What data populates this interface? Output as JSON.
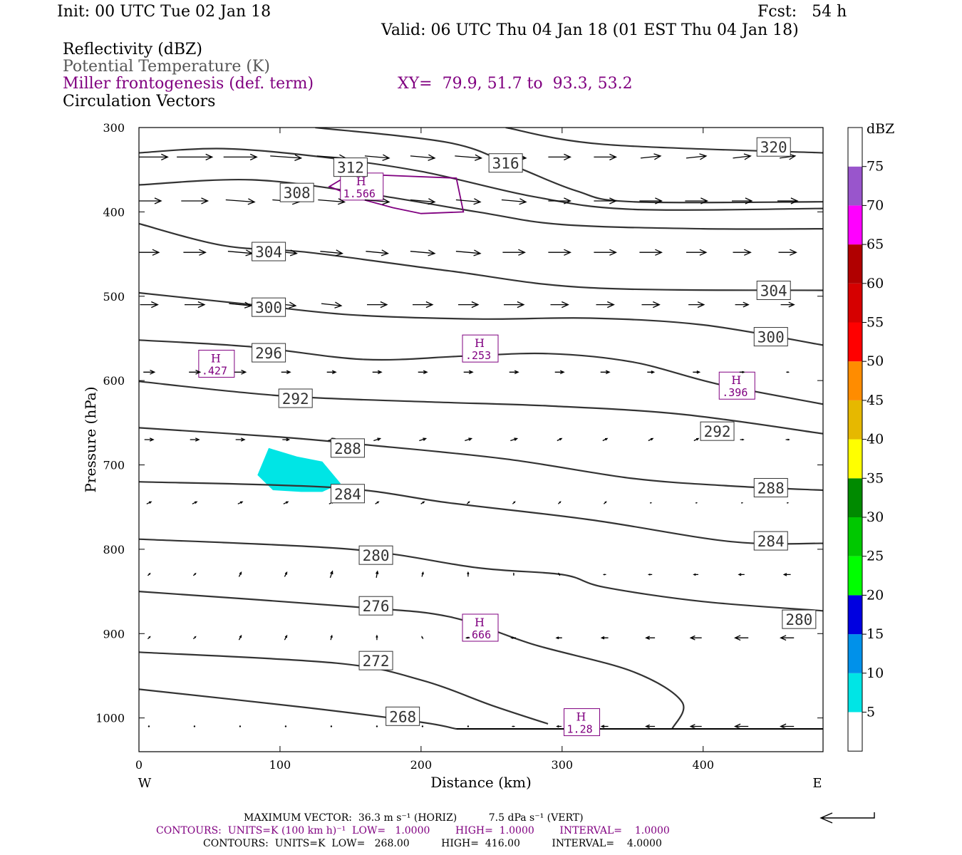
{
  "header": {
    "init": "Init: 00 UTC Tue 02 Jan 18",
    "fcst": "Fcst:   54 h",
    "valid": "Valid: 06 UTC Thu 04 Jan 18 (01 EST Thu 04 Jan 18)",
    "fields": [
      "Reflectivity (dBZ)",
      "Potential Temperature (K)",
      "Miller frontogenesis (def. term)",
      "Circulation Vectors"
    ],
    "xy": "XY=  79.9, 51.7 to  93.3, 53.2"
  },
  "colors": {
    "theta": "#333333",
    "fronto": "#800080",
    "vector": "#000000"
  },
  "chart_data": {
    "type": "cross-section",
    "xlabel": "Distance (km)",
    "ylabel": "Pressure (hPa)",
    "xlim": [
      0,
      485
    ],
    "ylim": [
      1040,
      300
    ],
    "x_ticks": [
      0,
      100,
      200,
      300,
      400
    ],
    "y_ticks": [
      300,
      400,
      500,
      600,
      700,
      800,
      900,
      1000
    ],
    "x_end_labels": [
      "W",
      "E"
    ],
    "theta_contours": [
      {
        "value": 320,
        "points": [
          [
            260,
            300
          ],
          [
            330,
            320
          ],
          [
            485,
            330
          ]
        ],
        "labels": [
          [
            450,
            323
          ]
        ]
      },
      {
        "value": 316,
        "points": [
          [
            125,
            300
          ],
          [
            220,
            318
          ],
          [
            265,
            345
          ],
          [
            310,
            375
          ],
          [
            350,
            388
          ],
          [
            485,
            388
          ]
        ],
        "labels": [
          [
            260,
            342
          ]
        ]
      },
      {
        "value": 312,
        "points": [
          [
            0,
            330
          ],
          [
            60,
            325
          ],
          [
            130,
            335
          ],
          [
            200,
            352
          ],
          [
            280,
            382
          ],
          [
            350,
            397
          ],
          [
            485,
            396
          ]
        ],
        "labels": [
          [
            150,
            347
          ]
        ]
      },
      {
        "value": 308,
        "points": [
          [
            0,
            368
          ],
          [
            80,
            362
          ],
          [
            160,
            378
          ],
          [
            240,
            400
          ],
          [
            300,
            415
          ],
          [
            400,
            420
          ],
          [
            485,
            420
          ]
        ],
        "labels": [
          [
            112,
            377
          ]
        ]
      },
      {
        "value": 304,
        "points": [
          [
            0,
            414
          ],
          [
            60,
            440
          ],
          [
            120,
            448
          ],
          [
            220,
            470
          ],
          [
            320,
            490
          ],
          [
            485,
            493
          ]
        ],
        "labels": [
          [
            92,
            447
          ]
        ],
        "labels2": [
          [
            450,
            493
          ]
        ]
      },
      {
        "value": 300,
        "points": [
          [
            0,
            496
          ],
          [
            80,
            510
          ],
          [
            150,
            522
          ],
          [
            240,
            527
          ],
          [
            320,
            526
          ],
          [
            400,
            534
          ],
          [
            485,
            558
          ]
        ],
        "labels": [
          [
            92,
            513
          ]
        ],
        "labels2": [
          [
            448,
            548
          ]
        ]
      },
      {
        "value": 296,
        "points": [
          [
            0,
            552
          ],
          [
            80,
            560
          ],
          [
            160,
            575
          ],
          [
            230,
            571
          ],
          [
            290,
            568
          ],
          [
            350,
            578
          ],
          [
            410,
            604
          ],
          [
            485,
            628
          ]
        ],
        "labels": [
          [
            92,
            567
          ]
        ]
      },
      {
        "value": 292,
        "points": [
          [
            0,
            601
          ],
          [
            100,
            618
          ],
          [
            200,
            625
          ],
          [
            290,
            630
          ],
          [
            385,
            640
          ],
          [
            485,
            663
          ]
        ],
        "labels": [
          [
            111,
            621
          ]
        ],
        "labels2": [
          [
            410,
            660
          ]
        ]
      },
      {
        "value": 288,
        "points": [
          [
            0,
            656
          ],
          [
            100,
            667
          ],
          [
            160,
            676
          ],
          [
            260,
            693
          ],
          [
            350,
            716
          ],
          [
            420,
            725
          ],
          [
            485,
            730
          ]
        ],
        "labels": [
          [
            148,
            680
          ]
        ],
        "labels2": [
          [
            448,
            727
          ]
        ]
      },
      {
        "value": 284,
        "points": [
          [
            0,
            720
          ],
          [
            140,
            727
          ],
          [
            220,
            745
          ],
          [
            320,
            765
          ],
          [
            420,
            791
          ],
          [
            485,
            793
          ]
        ],
        "labels": [
          [
            148,
            734
          ]
        ],
        "labels2": [
          [
            448,
            790
          ]
        ]
      },
      {
        "value": 280,
        "points": [
          [
            0,
            788
          ],
          [
            150,
            800
          ],
          [
            240,
            822
          ],
          [
            300,
            830
          ],
          [
            330,
            845
          ],
          [
            400,
            862
          ],
          [
            485,
            873
          ]
        ],
        "labels": [
          [
            168,
            807
          ]
        ],
        "labels2": [
          [
            468,
            883
          ]
        ]
      },
      {
        "value": 276,
        "points": [
          [
            0,
            850
          ],
          [
            150,
            868
          ],
          [
            220,
            880
          ],
          [
            280,
            913
          ],
          [
            350,
            945
          ],
          [
            385,
            981
          ],
          [
            378,
            1013
          ]
        ],
        "labels": [
          [
            168,
            867
          ]
        ]
      },
      {
        "value": 272,
        "points": [
          [
            0,
            922
          ],
          [
            140,
            935
          ],
          [
            200,
            955
          ],
          [
            250,
            985
          ],
          [
            290,
            1007
          ]
        ],
        "labels": [
          [
            168,
            932
          ]
        ]
      },
      {
        "value": 268,
        "points": [
          [
            0,
            966
          ],
          [
            120,
            988
          ],
          [
            200,
            1005
          ],
          [
            225,
            1013
          ]
        ],
        "labels": [
          [
            187,
            998
          ]
        ]
      }
    ],
    "fronto_maxima": [
      {
        "x": 158,
        "p": 370,
        "value": "1.566",
        "polygon": [
          [
            135,
            370
          ],
          [
            150,
            355
          ],
          [
            225,
            360
          ],
          [
            230,
            400
          ],
          [
            200,
            402
          ],
          [
            180,
            395
          ],
          [
            158,
            385
          ]
        ]
      },
      {
        "x": 55,
        "p": 580,
        "value": ".427"
      },
      {
        "x": 242,
        "p": 562,
        "value": ".253"
      },
      {
        "x": 424,
        "p": 606,
        "value": ".396"
      },
      {
        "x": 242,
        "p": 893,
        "value": ".666"
      },
      {
        "x": 314,
        "p": 1005,
        "value": "1.28"
      }
    ],
    "fronto_label": "H",
    "reflectivity_areas": [
      {
        "dbz_band": "5-10",
        "polygon": [
          [
            92,
            680
          ],
          [
            112,
            690
          ],
          [
            130,
            696
          ],
          [
            143,
            722
          ],
          [
            130,
            732
          ],
          [
            115,
            732
          ],
          [
            95,
            730
          ],
          [
            84,
            712
          ]
        ]
      }
    ],
    "colorbar": {
      "unit": "dBZ",
      "levels": [
        5,
        10,
        15,
        20,
        25,
        30,
        35,
        40,
        45,
        50,
        55,
        60,
        65,
        70,
        75
      ],
      "colors": [
        "#ffffff",
        "#00e5e5",
        "#0091ea",
        "#0000e0",
        "#00ff00",
        "#00c800",
        "#008a00",
        "#ffff00",
        "#e6b800",
        "#ff8c00",
        "#ff0000",
        "#d60000",
        "#b00000",
        "#ff00ff",
        "#9955cc",
        "#ffffff"
      ]
    },
    "vector_rows": [
      {
        "p": 335,
        "u": [
          34,
          32,
          30,
          28,
          26,
          22,
          22,
          24,
          22,
          20,
          20,
          18,
          18,
          16,
          14
        ],
        "w": [
          0,
          0,
          0,
          -1,
          -1,
          -1,
          -1,
          -1,
          -1,
          0,
          0,
          1,
          1,
          1,
          1
        ]
      },
      {
        "p": 387,
        "u": [
          22,
          24,
          26,
          24,
          24,
          22,
          22,
          22,
          22,
          20,
          20,
          20,
          20,
          18,
          18
        ],
        "w": [
          0,
          0,
          -1,
          -1,
          -1,
          -1,
          -1,
          -1,
          -1,
          0,
          0,
          0,
          0,
          0,
          0
        ]
      },
      {
        "p": 448,
        "u": [
          18,
          20,
          22,
          20,
          20,
          20,
          22,
          22,
          20,
          20,
          20,
          20,
          18,
          16,
          16
        ],
        "w": [
          0,
          0,
          -1,
          -1,
          -1,
          -1,
          -1,
          -1,
          0,
          0,
          0,
          0,
          0,
          0,
          0
        ]
      },
      {
        "p": 510,
        "u": [
          16,
          18,
          20,
          18,
          18,
          18,
          18,
          18,
          18,
          16,
          16,
          16,
          14,
          12,
          12
        ],
        "w": [
          0,
          0,
          -1,
          -1,
          -1,
          0,
          0,
          0,
          0,
          0,
          0,
          0,
          0,
          0,
          0
        ]
      },
      {
        "p": 590,
        "u": [
          10,
          10,
          10,
          8,
          8,
          8,
          8,
          8,
          8,
          8,
          8,
          6,
          6,
          4,
          2
        ],
        "w": [
          0,
          0,
          0,
          0,
          0,
          0,
          0,
          0,
          0,
          0,
          0,
          0,
          0,
          0,
          0
        ]
      },
      {
        "p": 670,
        "u": [
          8,
          8,
          8,
          6,
          6,
          6,
          6,
          6,
          6,
          4,
          4,
          4,
          4,
          3,
          3
        ],
        "w": [
          0,
          0,
          0,
          0,
          1,
          1,
          1,
          1,
          1,
          1,
          1,
          1,
          1,
          0,
          0
        ]
      },
      {
        "p": 745,
        "u": [
          4,
          4,
          4,
          4,
          4,
          3,
          3,
          2,
          2,
          2,
          2,
          1,
          1,
          1,
          1
        ],
        "w": [
          1,
          1,
          1,
          1,
          1,
          1,
          1,
          1,
          1,
          1,
          1,
          0,
          0,
          0,
          0
        ]
      },
      {
        "p": 830,
        "u": [
          2,
          2,
          2,
          2,
          2,
          1,
          1,
          0,
          0,
          -1,
          -2,
          -3,
          -4,
          -5,
          -6
        ],
        "w": [
          1,
          1,
          2,
          2,
          3,
          3,
          2,
          2,
          1,
          1,
          0,
          0,
          0,
          0,
          0
        ]
      },
      {
        "p": 905,
        "u": [
          2,
          2,
          2,
          2,
          1,
          0,
          -1,
          -3,
          -4,
          -5,
          -6,
          -8,
          -10,
          -12,
          -12
        ],
        "w": [
          1,
          1,
          2,
          2,
          2,
          2,
          1,
          0,
          0,
          0,
          0,
          0,
          0,
          0,
          0
        ]
      },
      {
        "p": 1010,
        "u": [
          0,
          0,
          0,
          0,
          0,
          0,
          0,
          0,
          -2,
          -4,
          -6,
          -8,
          -10,
          -12,
          -12
        ],
        "w": [
          0,
          0,
          0,
          0,
          0,
          0,
          0,
          0,
          0,
          0,
          0,
          0,
          0,
          0,
          0
        ]
      }
    ]
  },
  "footer": {
    "max_vector": "MAXIMUM VECTOR:  36.3 m s⁻¹ (HORIZ)          7.5 dPa s⁻¹ (VERT)",
    "contours_fronto": "CONTOURS:  UNITS=K (100 km h)⁻¹  LOW=   1.0000        HIGH=  1.0000        INTERVAL=    1.0000",
    "contours_theta": "CONTOURS:  UNITS=K  LOW=   268.00          HIGH=  416.00          INTERVAL=    4.0000"
  }
}
